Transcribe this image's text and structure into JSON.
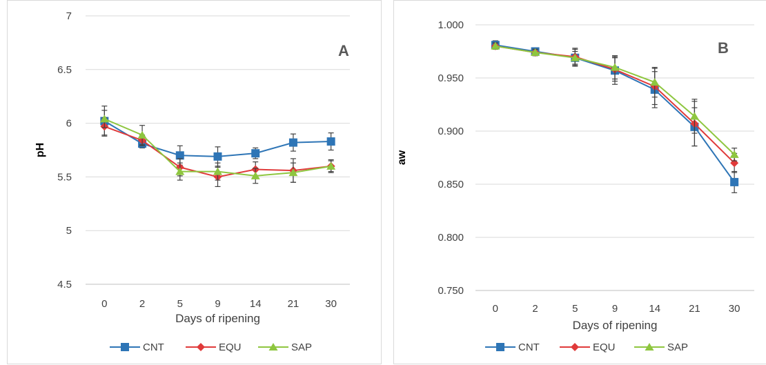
{
  "chart_data": [
    {
      "type": "line",
      "panel_label": "A",
      "xlabel": "Days of ripening",
      "ylabel": "pH",
      "categories": [
        "0",
        "2",
        "5",
        "9",
        "14",
        "21",
        "30"
      ],
      "ylim": [
        4.5,
        7
      ],
      "yticks": [
        "4.5",
        "5",
        "5.5",
        "6",
        "6.5",
        "7"
      ],
      "ytick_values": [
        4.5,
        5,
        5.5,
        6,
        6.5,
        7
      ],
      "grid": true,
      "legend_position": "bottom",
      "series": [
        {
          "name": "CNT",
          "color": "#2e75b6",
          "marker": "square",
          "values": [
            6.02,
            5.81,
            5.7,
            5.69,
            5.72,
            5.82,
            5.83
          ],
          "errors": [
            0.14,
            0.04,
            0.09,
            0.09,
            0.05,
            0.08,
            0.08
          ]
        },
        {
          "name": "EQU",
          "color": "#e03a3a",
          "marker": "diamond",
          "values": [
            5.97,
            5.84,
            5.59,
            5.5,
            5.57,
            5.56,
            5.6
          ],
          "errors": [
            0.08,
            0.05,
            0.08,
            0.09,
            0.07,
            0.11,
            0.06
          ]
        },
        {
          "name": "SAP",
          "color": "#8ec63f",
          "marker": "triangle",
          "values": [
            6.04,
            5.89,
            5.55,
            5.55,
            5.51,
            5.54,
            5.6
          ],
          "errors": [
            0.08,
            0.09,
            0.08,
            0.08,
            0.07,
            0.09,
            0.05
          ]
        }
      ]
    },
    {
      "type": "line",
      "panel_label": "B",
      "xlabel": "Days of ripening",
      "ylabel": "aw",
      "categories": [
        "0",
        "2",
        "5",
        "9",
        "14",
        "21",
        "30"
      ],
      "ylim": [
        0.75,
        1.0
      ],
      "yticks": [
        "0.750",
        "0.800",
        "0.850",
        "0.900",
        "0.950",
        "1.000"
      ],
      "ytick_values": [
        0.75,
        0.8,
        0.85,
        0.9,
        0.95,
        1.0
      ],
      "grid": true,
      "legend_position": "bottom",
      "series": [
        {
          "name": "CNT",
          "color": "#2e75b6",
          "marker": "square",
          "values": [
            0.981,
            0.975,
            0.969,
            0.957,
            0.939,
            0.904,
            0.852
          ],
          "errors": [
            0.004,
            0.002,
            0.008,
            0.013,
            0.017,
            0.018,
            0.01
          ]
        },
        {
          "name": "EQU",
          "color": "#e03a3a",
          "marker": "diamond",
          "values": [
            0.98,
            0.974,
            0.97,
            0.958,
            0.942,
            0.907,
            0.87
          ],
          "errors": [
            0.003,
            0.003,
            0.008,
            0.011,
            0.017,
            0.021,
            0.009
          ]
        },
        {
          "name": "SAP",
          "color": "#8ec63f",
          "marker": "triangle",
          "values": [
            0.98,
            0.974,
            0.969,
            0.96,
            0.946,
            0.914,
            0.878
          ],
          "errors": [
            0.003,
            0.003,
            0.006,
            0.011,
            0.014,
            0.016,
            0.006
          ]
        }
      ]
    }
  ]
}
